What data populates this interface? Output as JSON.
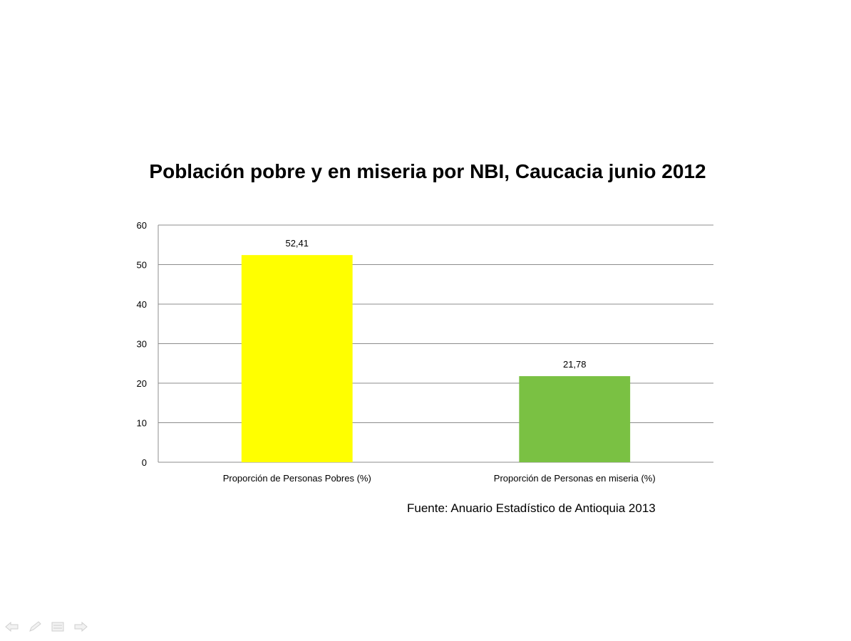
{
  "chart_data": {
    "type": "bar",
    "title": "Población pobre y en miseria por NBI, Caucacia junio 2012",
    "categories": [
      "Proporción de Personas Pobres (%)",
      "Proporción de Personas en miseria (%)"
    ],
    "values": [
      52.41,
      21.78
    ],
    "data_labels": [
      "52,41",
      "21,78"
    ],
    "bar_colors": [
      "#ffff00",
      "#7ac143"
    ],
    "ylim": [
      0,
      60
    ],
    "yticks": [
      0,
      10,
      20,
      30,
      40,
      50,
      60
    ],
    "xlabel": "",
    "ylabel": "",
    "grid": true,
    "legend": "none"
  },
  "source_note": "Fuente: Anuario Estadístico de Antioquia 2013",
  "nav": {
    "icons": [
      "arrow-left-icon",
      "pen-icon",
      "menu-icon",
      "arrow-right-icon"
    ]
  }
}
